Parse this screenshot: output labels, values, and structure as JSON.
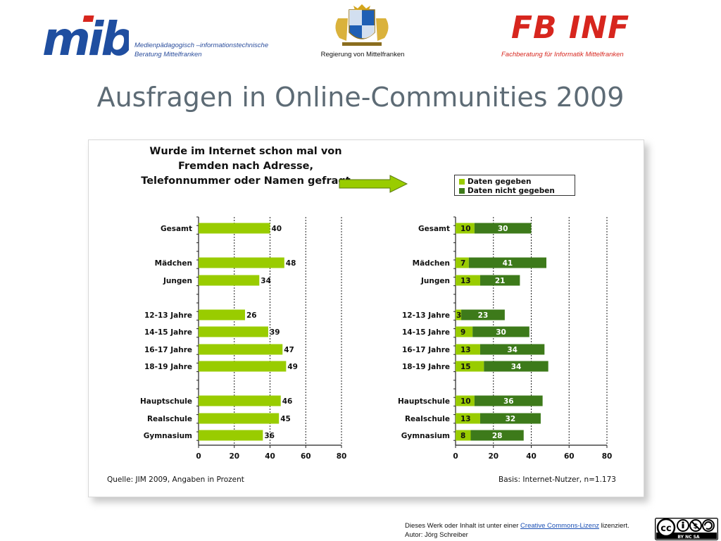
{
  "header": {
    "mib_logo_text": "mib",
    "mib_subtitle": "Medienpädagogisch –informationstechnische\nBeratung Mittelfranken",
    "regierung_label": "Regierung von Mittelfranken",
    "fbinf_logo_text": "FB INF",
    "fbinf_subtitle": "Fachberatung für Informatik Mittelfranken"
  },
  "title": "Ausfragen in Online-Communities 2009",
  "question": "Wurde im Internet schon mal von Fremden nach Adresse, Telefonnummer oder Namen gefragt",
  "legend": [
    {
      "label": "Daten gegeben",
      "color": "#99cc00"
    },
    {
      "label": "Daten nicht gegeben",
      "color": "#3d7a1a"
    }
  ],
  "source_left": "Quelle: JIM 2009, Angaben in Prozent",
  "source_right": "Basis: Internet-Nutzer, n=1.173",
  "chart_data": [
    {
      "type": "bar",
      "orientation": "horizontal",
      "categories": [
        "Gesamt",
        "Mädchen",
        "Jungen",
        "12-13 Jahre",
        "14-15 Jahre",
        "16-17 Jahre",
        "18-19 Jahre",
        "Hauptschule",
        "Realschule",
        "Gymnasium"
      ],
      "values": [
        40,
        48,
        34,
        26,
        39,
        47,
        49,
        46,
        45,
        36
      ],
      "xlim": [
        0,
        80
      ],
      "xticks": [
        0,
        20,
        40,
        60,
        80
      ],
      "color": "#99cc00"
    },
    {
      "type": "bar",
      "orientation": "horizontal",
      "stacked": true,
      "categories": [
        "Gesamt",
        "Mädchen",
        "Jungen",
        "12-13 Jahre",
        "14-15 Jahre",
        "16-17 Jahre",
        "18-19 Jahre",
        "Hauptschule",
        "Realschule",
        "Gymnasium"
      ],
      "series": [
        {
          "name": "Daten gegeben",
          "values": [
            10,
            7,
            13,
            3,
            9,
            13,
            15,
            10,
            13,
            8
          ],
          "color": "#99cc00"
        },
        {
          "name": "Daten nicht gegeben",
          "values": [
            30,
            41,
            21,
            23,
            30,
            34,
            34,
            36,
            32,
            28
          ],
          "color": "#3d7a1a"
        }
      ],
      "xlim": [
        0,
        80
      ],
      "xticks": [
        0,
        20,
        40,
        60,
        80
      ],
      "legend_position": "top-right"
    }
  ],
  "footer": {
    "license_prefix": "Dieses Werk oder Inhalt ist unter einer ",
    "license_link": "Creative Commons-Lizenz",
    "license_suffix": " lizenziert.",
    "author": "Autor: Jörg Schreiber",
    "cc_text": "cc",
    "cc_tags": "BY   NC   SA"
  }
}
